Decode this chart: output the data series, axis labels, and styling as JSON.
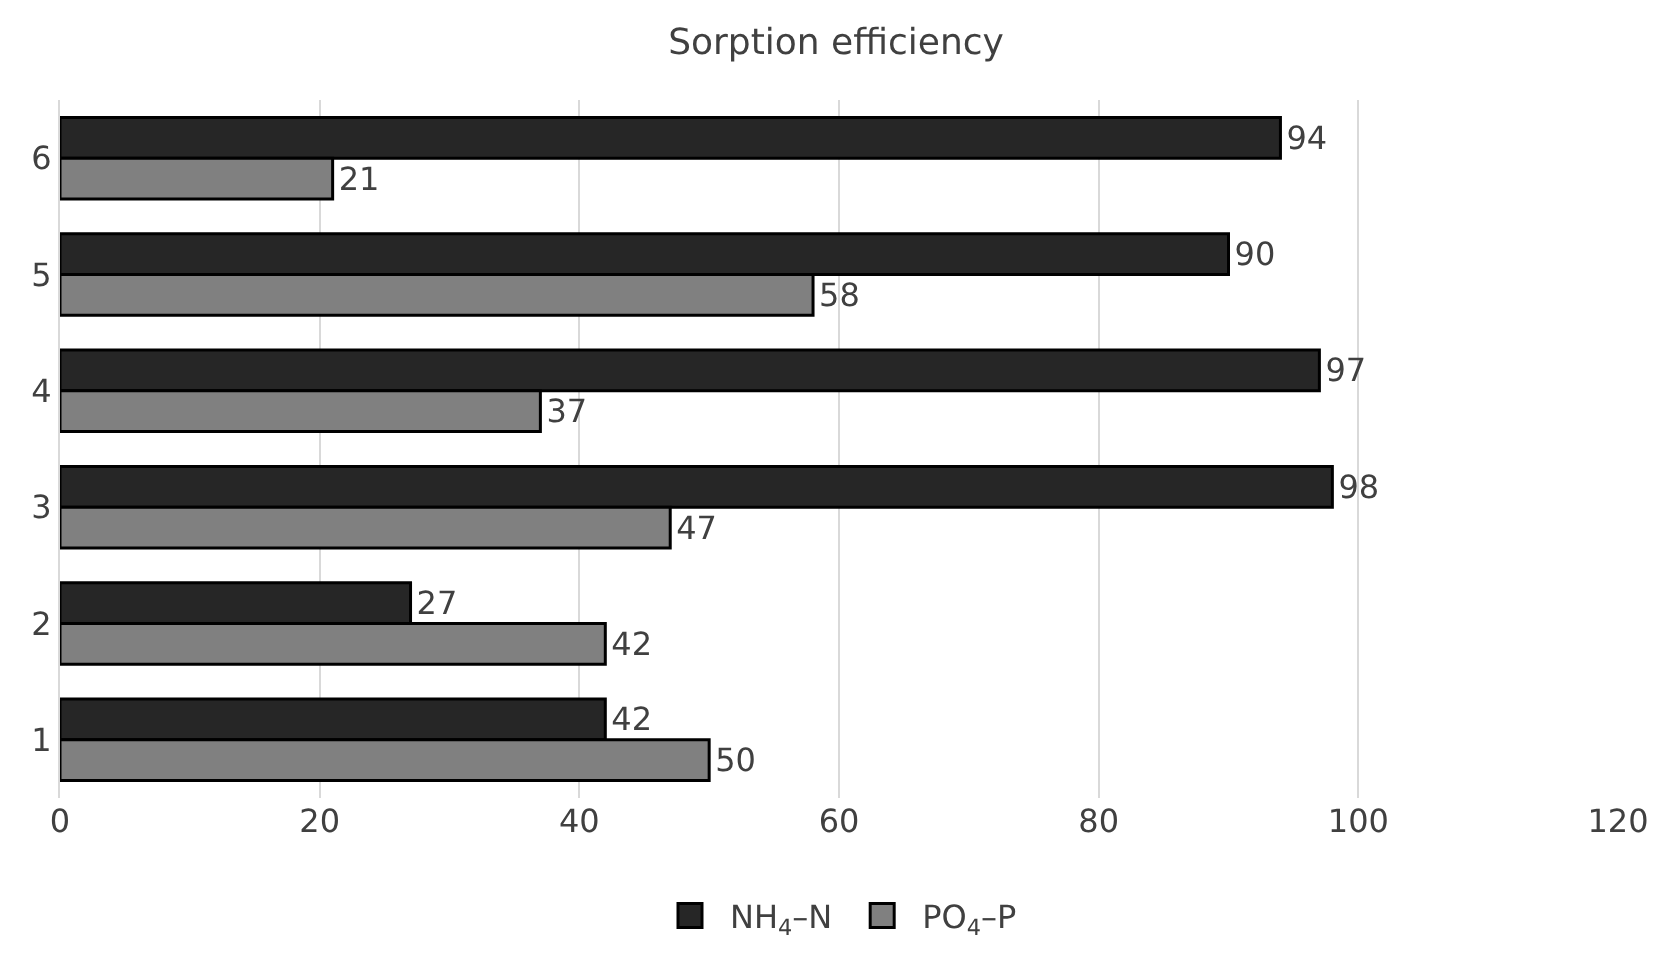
{
  "chart_data": {
    "type": "bar",
    "orientation": "horizontal",
    "title": "Sorption efficiency",
    "categories": [
      "6",
      "5",
      "4",
      "3",
      "2",
      "1"
    ],
    "series": [
      {
        "name": "NH$_{4}$–N",
        "color": "#262626",
        "values": [
          94,
          90,
          97,
          98,
          27,
          42
        ]
      },
      {
        "name": "PO$_{4}$–P",
        "color": "#808080",
        "values": [
          21,
          58,
          37,
          47,
          42,
          50
        ]
      }
    ],
    "xlim": [
      0,
      120
    ],
    "xticks": [
      0,
      20,
      40,
      60,
      80,
      100,
      120
    ],
    "grid": "x",
    "legend": "bottom",
    "data_labels": true
  }
}
